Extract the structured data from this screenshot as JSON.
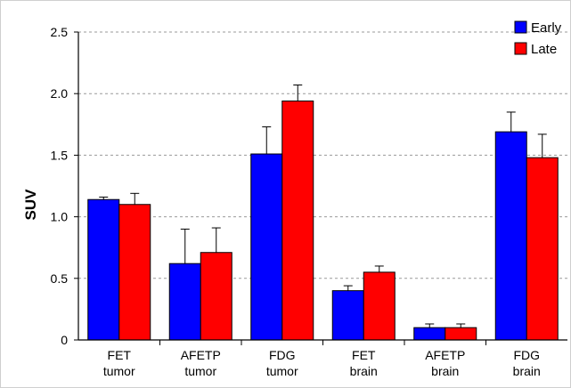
{
  "chart_data": {
    "type": "bar",
    "title": "",
    "xlabel": "",
    "ylabel": "SUV",
    "ylim": [
      0,
      2.5
    ],
    "yticks": [
      "0",
      "0.5",
      "1.0",
      "1.5",
      "2.0",
      "2.5"
    ],
    "grid": "horizontal dashed",
    "legend_position": "top-right",
    "categories": [
      [
        "FET",
        "tumor"
      ],
      [
        "AFETP",
        "tumor"
      ],
      [
        "FDG",
        "tumor"
      ],
      [
        "FET",
        "brain"
      ],
      [
        "AFETP",
        "brain"
      ],
      [
        "FDG",
        "brain"
      ]
    ],
    "series": [
      {
        "name": "Early",
        "color": "#0000ff",
        "values": [
          1.14,
          0.62,
          1.51,
          0.4,
          0.1,
          1.69
        ],
        "errors": [
          0.02,
          0.28,
          0.22,
          0.04,
          0.03,
          0.16
        ]
      },
      {
        "name": "Late",
        "color": "#ff0000",
        "values": [
          1.1,
          0.71,
          1.94,
          0.55,
          0.1,
          1.48
        ],
        "errors": [
          0.09,
          0.2,
          0.13,
          0.05,
          0.03,
          0.19
        ]
      }
    ]
  }
}
